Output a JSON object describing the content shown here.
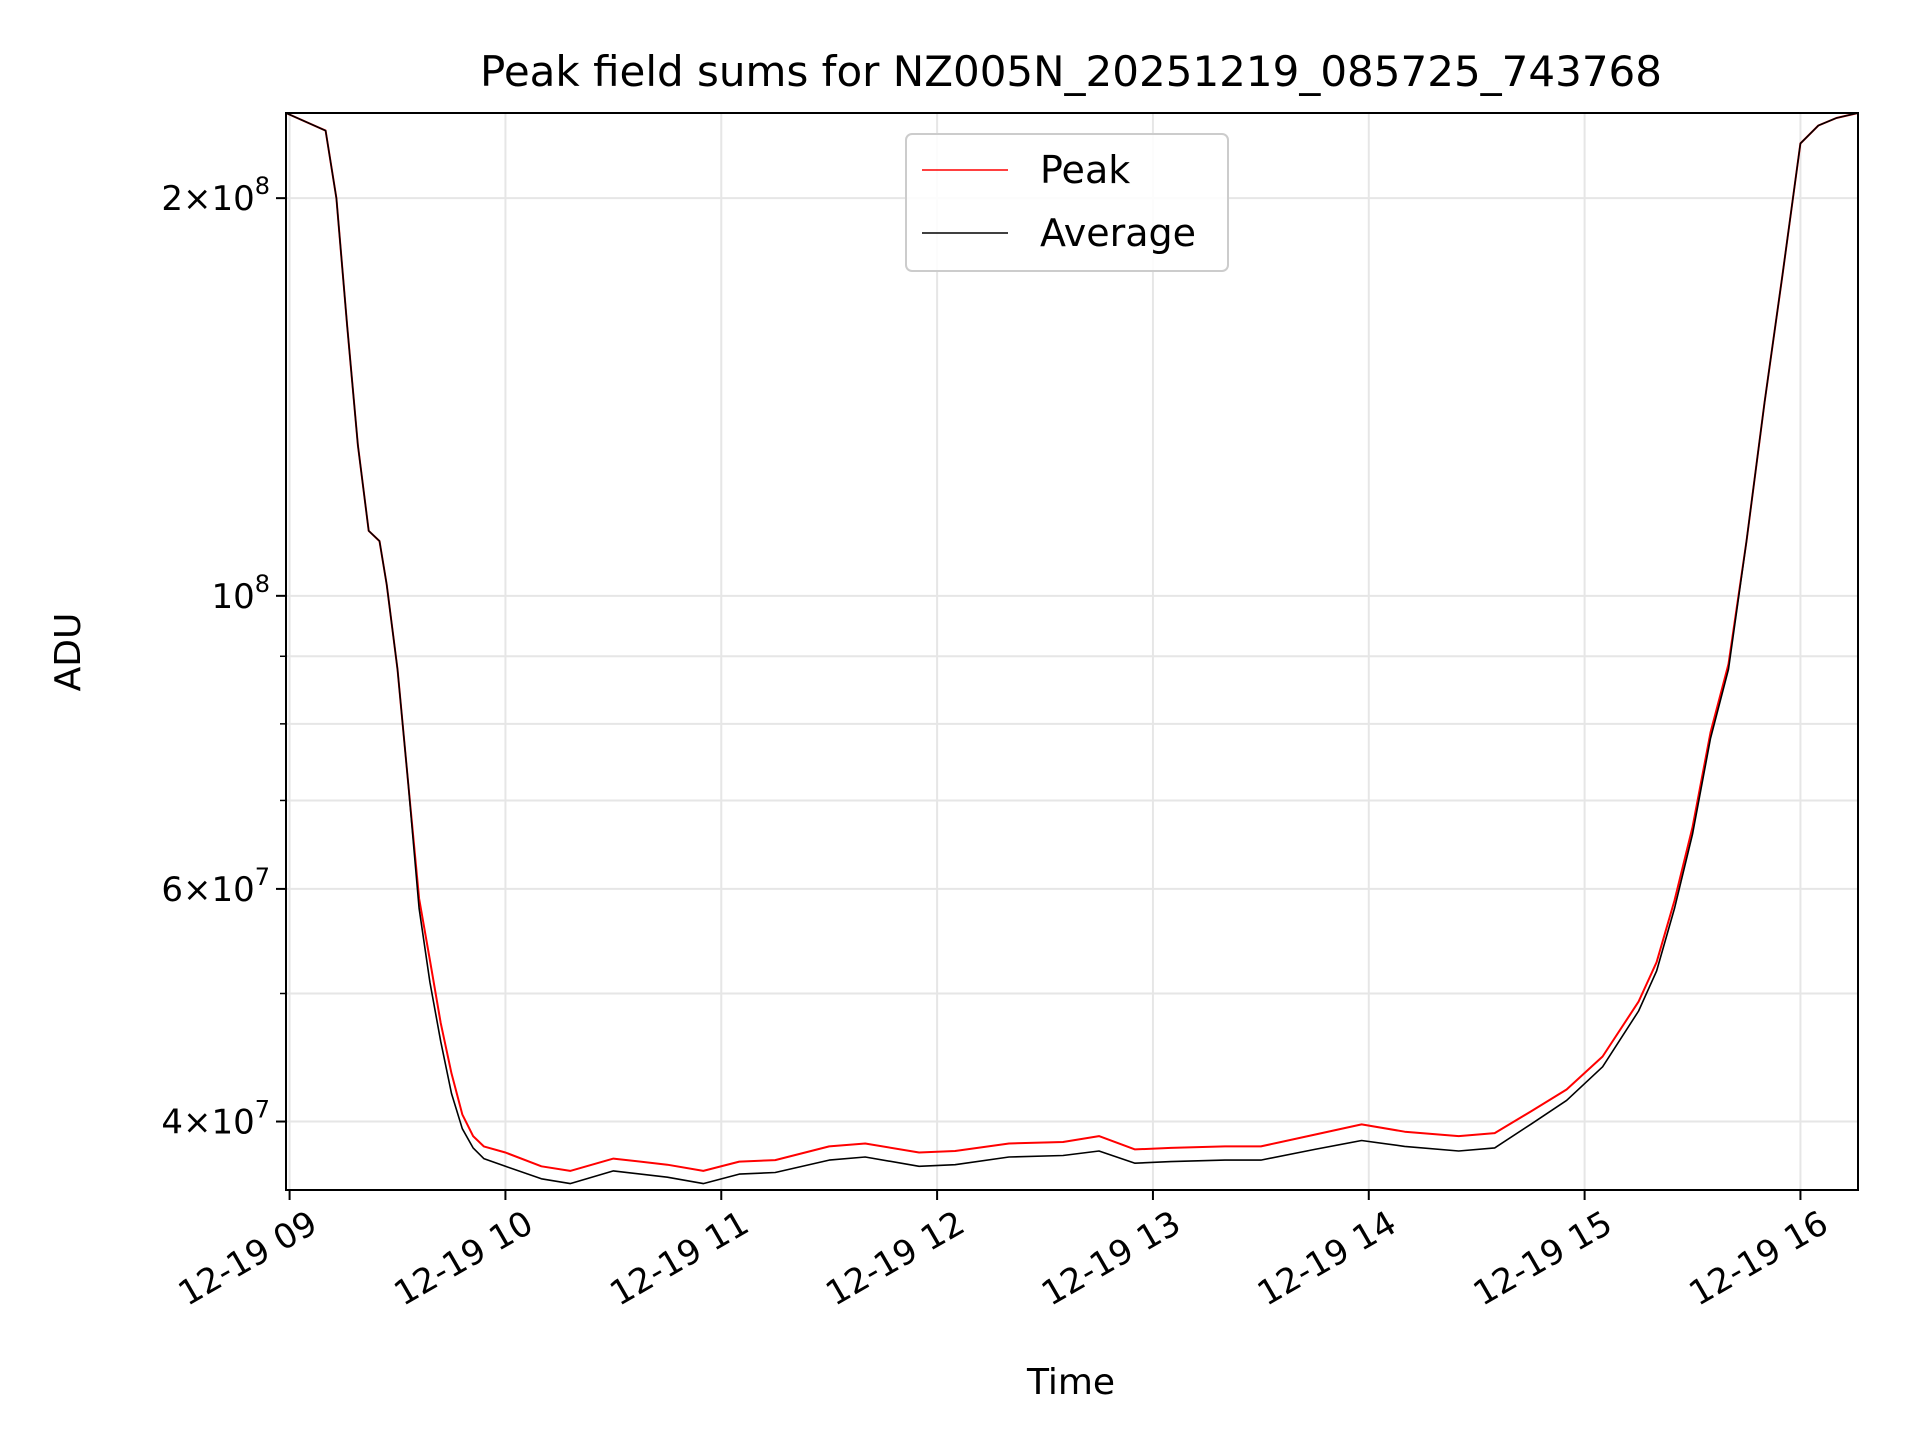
{
  "chart_data": {
    "type": "line",
    "title": "Peak field sums for NZ005N_20251219_085725_743768",
    "xlabel": "Time",
    "ylabel": "ADU",
    "yscale": "log",
    "xlim": [
      "2025-12-19 08:59",
      "2025-12-19 16:16"
    ],
    "ylim": [
      35500000,
      232000000
    ],
    "grid": true,
    "legend": {
      "placement": "upper center",
      "entries": [
        "Peak",
        "Average"
      ]
    },
    "x_ticks": [
      {
        "value": "2025-12-19 09:00",
        "label": "12-19 09"
      },
      {
        "value": "2025-12-19 10:00",
        "label": "12-19 10"
      },
      {
        "value": "2025-12-19 11:00",
        "label": "12-19 11"
      },
      {
        "value": "2025-12-19 12:00",
        "label": "12-19 12"
      },
      {
        "value": "2025-12-19 13:00",
        "label": "12-19 13"
      },
      {
        "value": "2025-12-19 14:00",
        "label": "12-19 14"
      },
      {
        "value": "2025-12-19 15:00",
        "label": "12-19 15"
      },
      {
        "value": "2025-12-19 16:00",
        "label": "12-19 16"
      }
    ],
    "y_ticks": [
      {
        "value": 40000000,
        "mantissa": "4",
        "exponent": "7"
      },
      {
        "value": 60000000,
        "mantissa": "6",
        "exponent": "7"
      },
      {
        "value": 100000000,
        "mantissa": "",
        "exponent": "8"
      },
      {
        "value": 200000000,
        "mantissa": "2",
        "exponent": "8"
      }
    ],
    "series": [
      {
        "name": "Average",
        "color": "#000000",
        "x": [
          "2025-12-19 08:59",
          "2025-12-19 09:10",
          "2025-12-19 09:13",
          "2025-12-19 09:16",
          "2025-12-19 09:19",
          "2025-12-19 09:22",
          "2025-12-19 09:25",
          "2025-12-19 09:27",
          "2025-12-19 09:30",
          "2025-12-19 09:33",
          "2025-12-19 09:36",
          "2025-12-19 09:39",
          "2025-12-19 09:42",
          "2025-12-19 09:45",
          "2025-12-19 09:48",
          "2025-12-19 09:51",
          "2025-12-19 09:54",
          "2025-12-19 10:00",
          "2025-12-19 10:10",
          "2025-12-19 10:18",
          "2025-12-19 10:30",
          "2025-12-19 10:45",
          "2025-12-19 10:55",
          "2025-12-19 11:05",
          "2025-12-19 11:15",
          "2025-12-19 11:30",
          "2025-12-19 11:40",
          "2025-12-19 11:55",
          "2025-12-19 12:05",
          "2025-12-19 12:20",
          "2025-12-19 12:35",
          "2025-12-19 12:45",
          "2025-12-19 12:55",
          "2025-12-19 13:05",
          "2025-12-19 13:20",
          "2025-12-19 13:30",
          "2025-12-19 13:45",
          "2025-12-19 13:58",
          "2025-12-19 14:10",
          "2025-12-19 14:25",
          "2025-12-19 14:35",
          "2025-12-19 14:45",
          "2025-12-19 14:55",
          "2025-12-19 15:05",
          "2025-12-19 15:15",
          "2025-12-19 15:20",
          "2025-12-19 15:25",
          "2025-12-19 15:30",
          "2025-12-19 15:35",
          "2025-12-19 15:40",
          "2025-12-19 15:45",
          "2025-12-19 15:50",
          "2025-12-19 15:55",
          "2025-12-19 16:00",
          "2025-12-19 16:05",
          "2025-12-19 16:10",
          "2025-12-19 16:16"
        ],
        "values": [
          232000000,
          225000000,
          200000000,
          160000000,
          130000000,
          112000000,
          110000000,
          102000000,
          88000000,
          72000000,
          58000000,
          51000000,
          46000000,
          42000000,
          39500000,
          38200000,
          37500000,
          37000000,
          36200000,
          35900000,
          36700000,
          36300000,
          35900000,
          36500000,
          36600000,
          37400000,
          37600000,
          37000000,
          37100000,
          37600000,
          37700000,
          38000000,
          37200000,
          37300000,
          37400000,
          37400000,
          38100000,
          38700000,
          38300000,
          38000000,
          38200000,
          39800000,
          41500000,
          44000000,
          48500000,
          52000000,
          58000000,
          66000000,
          78000000,
          88000000,
          110000000,
          140000000,
          175000000,
          220000000,
          227000000,
          230000000,
          232000000
        ]
      },
      {
        "name": "Peak",
        "color": "#ff0000",
        "x": [
          "2025-12-19 08:59",
          "2025-12-19 09:10",
          "2025-12-19 09:13",
          "2025-12-19 09:16",
          "2025-12-19 09:19",
          "2025-12-19 09:22",
          "2025-12-19 09:25",
          "2025-12-19 09:27",
          "2025-12-19 09:30",
          "2025-12-19 09:33",
          "2025-12-19 09:36",
          "2025-12-19 09:39",
          "2025-12-19 09:42",
          "2025-12-19 09:45",
          "2025-12-19 09:48",
          "2025-12-19 09:51",
          "2025-12-19 09:54",
          "2025-12-19 10:00",
          "2025-12-19 10:10",
          "2025-12-19 10:18",
          "2025-12-19 10:30",
          "2025-12-19 10:45",
          "2025-12-19 10:55",
          "2025-12-19 11:05",
          "2025-12-19 11:15",
          "2025-12-19 11:30",
          "2025-12-19 11:40",
          "2025-12-19 11:55",
          "2025-12-19 12:05",
          "2025-12-19 12:20",
          "2025-12-19 12:35",
          "2025-12-19 12:45",
          "2025-12-19 12:55",
          "2025-12-19 13:05",
          "2025-12-19 13:20",
          "2025-12-19 13:30",
          "2025-12-19 13:45",
          "2025-12-19 13:58",
          "2025-12-19 14:10",
          "2025-12-19 14:25",
          "2025-12-19 14:35",
          "2025-12-19 14:45",
          "2025-12-19 14:55",
          "2025-12-19 15:05",
          "2025-12-19 15:15",
          "2025-12-19 15:20",
          "2025-12-19 15:25",
          "2025-12-19 15:30",
          "2025-12-19 15:35",
          "2025-12-19 15:40",
          "2025-12-19 15:45",
          "2025-12-19 15:50",
          "2025-12-19 15:55",
          "2025-12-19 16:00",
          "2025-12-19 16:05",
          "2025-12-19 16:10",
          "2025-12-19 16:16"
        ],
        "values": [
          232000000,
          225000000,
          200000000,
          160000000,
          130000000,
          112000000,
          110000000,
          102000000,
          88000000,
          72000000,
          59000000,
          53000000,
          47500000,
          43500000,
          40500000,
          39000000,
          38300000,
          37900000,
          37000000,
          36700000,
          37500000,
          37100000,
          36700000,
          37300000,
          37400000,
          38300000,
          38500000,
          37900000,
          38000000,
          38500000,
          38600000,
          39000000,
          38100000,
          38200000,
          38300000,
          38300000,
          39100000,
          39800000,
          39300000,
          39000000,
          39200000,
          40700000,
          42300000,
          44800000,
          49300000,
          52800000,
          58800000,
          66800000,
          78800000,
          88800000,
          110000000,
          140000000,
          175000000,
          220000000,
          227000000,
          230000000,
          232000000
        ]
      }
    ]
  }
}
